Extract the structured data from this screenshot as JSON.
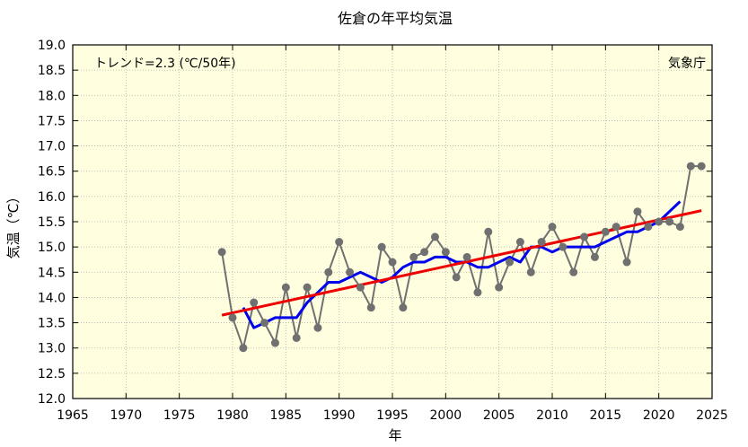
{
  "chart_data": {
    "type": "line",
    "title": "佐倉の年平均気温",
    "xlabel": "年",
    "ylabel": "気温（℃）",
    "annotations": {
      "trend": "トレンド=2.3 (℃/50年)",
      "source": "気象庁"
    },
    "xlim": [
      1965,
      2025
    ],
    "ylim": [
      12.0,
      19.0
    ],
    "x_ticks": [
      1965,
      1970,
      1975,
      1980,
      1985,
      1990,
      1995,
      2000,
      2005,
      2010,
      2015,
      2020,
      2025
    ],
    "y_ticks": [
      "12.0",
      "12.5",
      "13.0",
      "13.5",
      "14.0",
      "14.5",
      "15.0",
      "15.5",
      "16.0",
      "16.5",
      "17.0",
      "17.5",
      "18.0",
      "18.5",
      "19.0"
    ],
    "grid": true,
    "colors": {
      "plot_background": "#ffffe0",
      "annual_series": "#707070",
      "moving_average": "#0000ee",
      "trend_line": "#ee0000",
      "grid": "#b0b0b0"
    },
    "series": [
      {
        "key": "annual",
        "x": [
          1979,
          1980,
          1981,
          1982,
          1983,
          1984,
          1985,
          1986,
          1987,
          1988,
          1989,
          1990,
          1991,
          1992,
          1993,
          1994,
          1995,
          1996,
          1997,
          1998,
          1999,
          2000,
          2001,
          2002,
          2003,
          2004,
          2005,
          2006,
          2007,
          2008,
          2009,
          2010,
          2011,
          2012,
          2013,
          2014,
          2015,
          2016,
          2017,
          2018,
          2019,
          2020,
          2021,
          2022,
          2023,
          2024
        ],
        "values": [
          14.9,
          13.6,
          13.0,
          13.9,
          13.5,
          13.1,
          14.2,
          13.2,
          14.2,
          13.4,
          14.5,
          15.1,
          14.5,
          14.2,
          13.8,
          15.0,
          14.7,
          13.8,
          14.8,
          14.9,
          15.2,
          14.9,
          14.4,
          14.8,
          14.1,
          15.3,
          14.2,
          14.7,
          15.1,
          14.5,
          15.1,
          15.4,
          15.0,
          14.5,
          15.2,
          14.8,
          15.3,
          15.4,
          14.7,
          15.7,
          15.4,
          15.5,
          15.5,
          15.4,
          16.6,
          16.6
        ]
      },
      {
        "key": "moving_average_5yr",
        "x": [
          1981,
          1982,
          1983,
          1984,
          1985,
          1986,
          1987,
          1988,
          1989,
          1990,
          1991,
          1992,
          1993,
          1994,
          1995,
          1996,
          1997,
          1998,
          1999,
          2000,
          2001,
          2002,
          2003,
          2004,
          2005,
          2006,
          2007,
          2008,
          2009,
          2010,
          2011,
          2012,
          2013,
          2014,
          2015,
          2016,
          2017,
          2018,
          2019,
          2020,
          2021,
          2022
        ],
        "values": [
          13.8,
          13.4,
          13.5,
          13.6,
          13.6,
          13.6,
          13.9,
          14.1,
          14.3,
          14.3,
          14.4,
          14.5,
          14.4,
          14.3,
          14.4,
          14.6,
          14.7,
          14.7,
          14.8,
          14.8,
          14.7,
          14.7,
          14.6,
          14.6,
          14.7,
          14.8,
          14.7,
          15.0,
          15.0,
          14.9,
          15.0,
          15.0,
          15.0,
          15.0,
          15.1,
          15.2,
          15.3,
          15.3,
          15.4,
          15.5,
          15.7,
          15.9
        ]
      },
      {
        "key": "trend",
        "x": [
          1979,
          2024
        ],
        "values": [
          13.65,
          15.72
        ]
      }
    ]
  }
}
